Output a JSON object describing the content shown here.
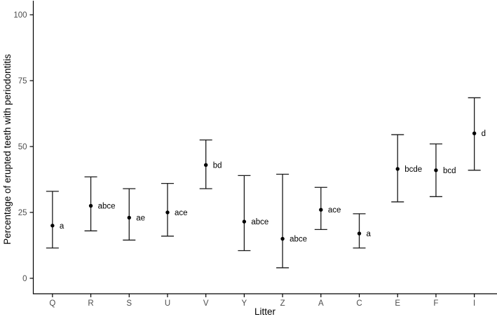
{
  "chart_data": {
    "type": "scatter",
    "subtype": "pointrange-errorbar",
    "title": "",
    "xlabel": "Litter",
    "ylabel": "Percentage of erupted teeth with periodontitis",
    "categories": [
      "Q",
      "R",
      "S",
      "U",
      "V",
      "Y",
      "Z",
      "A",
      "C",
      "E",
      "F",
      "I"
    ],
    "series": [
      {
        "name": "Percentage of erupted teeth with periodontitis",
        "points": [
          {
            "litter": "Q",
            "value": 20,
            "ci_low": 11.5,
            "ci_high": 33,
            "sig_letters": "a"
          },
          {
            "litter": "R",
            "value": 27.5,
            "ci_low": 18,
            "ci_high": 38.5,
            "sig_letters": "abce"
          },
          {
            "litter": "S",
            "value": 23,
            "ci_low": 14.5,
            "ci_high": 34,
            "sig_letters": "ae"
          },
          {
            "litter": "U",
            "value": 25,
            "ci_low": 16,
            "ci_high": 36,
            "sig_letters": "ace"
          },
          {
            "litter": "V",
            "value": 43,
            "ci_low": 34,
            "ci_high": 52.5,
            "sig_letters": "bd"
          },
          {
            "litter": "Y",
            "value": 21.5,
            "ci_low": 10.5,
            "ci_high": 39,
            "sig_letters": "abce"
          },
          {
            "litter": "Z",
            "value": 15,
            "ci_low": 4,
            "ci_high": 39.5,
            "sig_letters": "abce"
          },
          {
            "litter": "A",
            "value": 26,
            "ci_low": 18.5,
            "ci_high": 34.5,
            "sig_letters": "ace"
          },
          {
            "litter": "C",
            "value": 17,
            "ci_low": 11.5,
            "ci_high": 24.5,
            "sig_letters": "a"
          },
          {
            "litter": "E",
            "value": 41.5,
            "ci_low": 29,
            "ci_high": 54.5,
            "sig_letters": "bcde"
          },
          {
            "litter": "F",
            "value": 41,
            "ci_low": 31,
            "ci_high": 51,
            "sig_letters": "bcd"
          },
          {
            "litter": "I",
            "value": 55,
            "ci_low": 41,
            "ci_high": 68.5,
            "sig_letters": "d"
          }
        ]
      }
    ],
    "yticks": [
      0,
      25,
      50,
      75,
      100
    ],
    "ylim": [
      -5.6,
      105.6
    ],
    "grid": false,
    "legend": false,
    "colors": {
      "marker": "#000000",
      "errorbar": "#1a1a1a",
      "axis_line": "#000000",
      "tick_label": "#4d4d4d",
      "axis_title": "#000000",
      "background": "#ffffff"
    }
  }
}
